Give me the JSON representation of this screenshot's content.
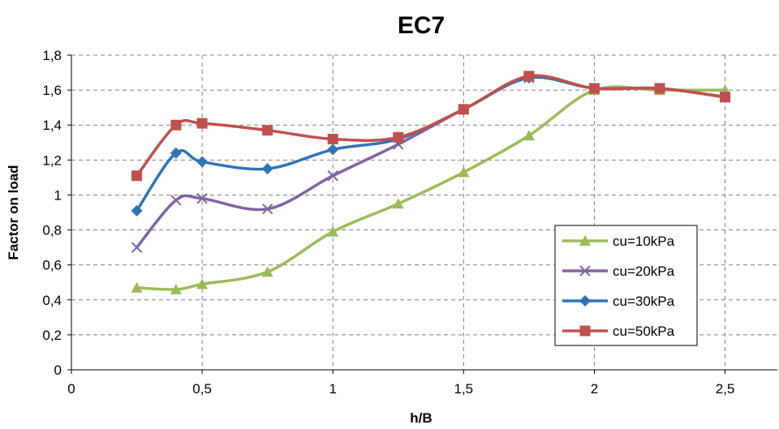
{
  "chart_data": {
    "type": "line",
    "title": "EC7",
    "xlabel": "h/B",
    "ylabel": "Factor on load",
    "xlim": [
      0,
      2.7
    ],
    "ylim": [
      0,
      1.8
    ],
    "x_ticks": [
      0,
      0.5,
      1,
      1.5,
      2,
      2.5
    ],
    "x_tick_labels": [
      "0",
      "0,5",
      "1",
      "1,5",
      "2",
      "2,5"
    ],
    "y_ticks": [
      0,
      0.2,
      0.4,
      0.6,
      0.8,
      1,
      1.2,
      1.4,
      1.6,
      1.8
    ],
    "y_tick_labels": [
      "0",
      "0,2",
      "0,4",
      "0,6",
      "0,8",
      "1",
      "1,2",
      "1,4",
      "1,6",
      "1,8"
    ],
    "grid": true,
    "legend_position": "bottom-right",
    "series": [
      {
        "name": "cu=10kPa",
        "color": "#9BBB59",
        "marker": "triangle",
        "x": [
          0.25,
          0.4,
          0.5,
          0.75,
          1,
          1.25,
          1.5,
          1.75,
          2,
          2.25,
          2.5
        ],
        "y": [
          0.47,
          0.46,
          0.49,
          0.56,
          0.79,
          0.95,
          1.13,
          1.34,
          1.6,
          1.6,
          1.6
        ]
      },
      {
        "name": "cu=20kPa",
        "color": "#8064A2",
        "marker": "cross",
        "x": [
          0.25,
          0.4,
          0.5,
          0.75,
          1,
          1.25,
          1.5,
          1.75,
          2,
          2.25,
          2.5
        ],
        "y": [
          0.7,
          0.97,
          0.98,
          0.92,
          1.11,
          1.29,
          1.49,
          1.67,
          1.61,
          1.61,
          1.56
        ]
      },
      {
        "name": "cu=30kPa",
        "color": "#2E75B6",
        "marker": "diamond",
        "x": [
          0.25,
          0.4,
          0.5,
          0.75,
          1,
          1.25,
          1.5,
          1.75,
          2,
          2.25,
          2.5
        ],
        "y": [
          0.91,
          1.24,
          1.19,
          1.15,
          1.26,
          1.32,
          1.49,
          1.67,
          1.61,
          1.61,
          1.56
        ]
      },
      {
        "name": "cu=50kPa",
        "color": "#C0504D",
        "marker": "square",
        "x": [
          0.25,
          0.4,
          0.5,
          0.75,
          1,
          1.25,
          1.5,
          1.75,
          2,
          2.25,
          2.5
        ],
        "y": [
          1.11,
          1.4,
          1.41,
          1.37,
          1.32,
          1.33,
          1.49,
          1.68,
          1.61,
          1.61,
          1.56
        ]
      }
    ]
  }
}
